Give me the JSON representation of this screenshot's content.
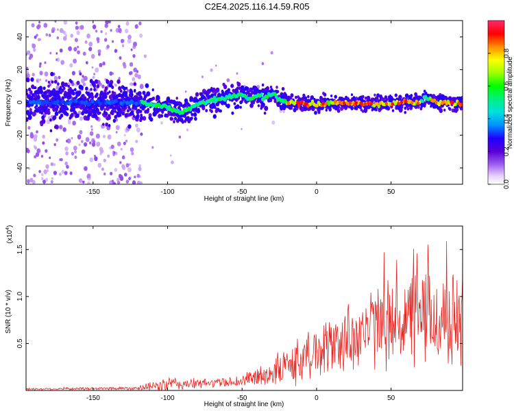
{
  "figure": {
    "title": "C2E4.2025.116.14.59.R05"
  },
  "chart_data": [
    {
      "type": "heatmap",
      "xlabel": "Height of straight line (km)",
      "ylabel": "Frequency (Hz)",
      "xlim": [
        -195,
        98
      ],
      "ylim": [
        -50,
        50
      ],
      "xticks": [
        -150,
        -100,
        -50,
        0,
        50
      ],
      "yticks": [
        -40,
        -20,
        0,
        20,
        40
      ],
      "ridge_frequency": {
        "x": [
          -195,
          -150,
          -120,
          -100,
          -90,
          -80,
          -70,
          -60,
          -50,
          -45,
          -40,
          -35,
          -30,
          -25,
          -20,
          0,
          20,
          40,
          60,
          70,
          73,
          80,
          90,
          98
        ],
        "y": [
          0,
          0,
          0,
          -3,
          -6,
          -1,
          1,
          3,
          5,
          2,
          4,
          3,
          5,
          2,
          0,
          -1,
          0,
          -1,
          0,
          0,
          3,
          0,
          0,
          -1
        ]
      },
      "colorbar": {
        "label": "Normalized spectral amplitude",
        "range": [
          0.0,
          1.0
        ],
        "ticks": [
          0.0,
          0.2,
          0.4,
          0.6,
          0.8
        ],
        "tick_labels": [
          "0.0",
          "0.2",
          "0.4",
          "0.6",
          "0.8"
        ]
      }
    },
    {
      "type": "line",
      "xlabel": "Height of straight line (km)",
      "ylabel": "SNR (10 * v/v)",
      "y_multiplier": "(x10",
      "y_multiplier_exp": "4",
      "y_multiplier_close": ")",
      "xlim": [
        -195,
        98
      ],
      "ylim": [
        0,
        1.75
      ],
      "xticks": [
        -150,
        -100,
        -50,
        0,
        50
      ],
      "yticks": [
        0.5,
        1.0,
        1.5
      ],
      "ytick_labels": [
        "0.5",
        "1.0",
        "1.5"
      ],
      "color": "#e8231f",
      "series": [
        {
          "x": [
            -195,
            -150,
            -120,
            -110,
            -100,
            -90,
            -80,
            -70,
            -60,
            -50,
            -40,
            -30,
            -20,
            -15,
            -10,
            0,
            10,
            20,
            30,
            40,
            50,
            60,
            70,
            80,
            90,
            98
          ],
          "mean": [
            0.015,
            0.02,
            0.025,
            0.04,
            0.06,
            0.07,
            0.07,
            0.08,
            0.09,
            0.1,
            0.14,
            0.19,
            0.26,
            0.3,
            0.33,
            0.42,
            0.48,
            0.55,
            0.62,
            0.68,
            0.72,
            0.75,
            0.78,
            0.76,
            0.73,
            0.75
          ],
          "spread": [
            0.01,
            0.015,
            0.02,
            0.05,
            0.09,
            0.07,
            0.05,
            0.05,
            0.05,
            0.07,
            0.1,
            0.14,
            0.2,
            0.24,
            0.24,
            0.27,
            0.3,
            0.38,
            0.38,
            0.42,
            0.45,
            0.5,
            0.52,
            0.52,
            0.5,
            0.55
          ],
          "peak": {
            "x": 98,
            "y": 1.68
          }
        }
      ]
    }
  ]
}
